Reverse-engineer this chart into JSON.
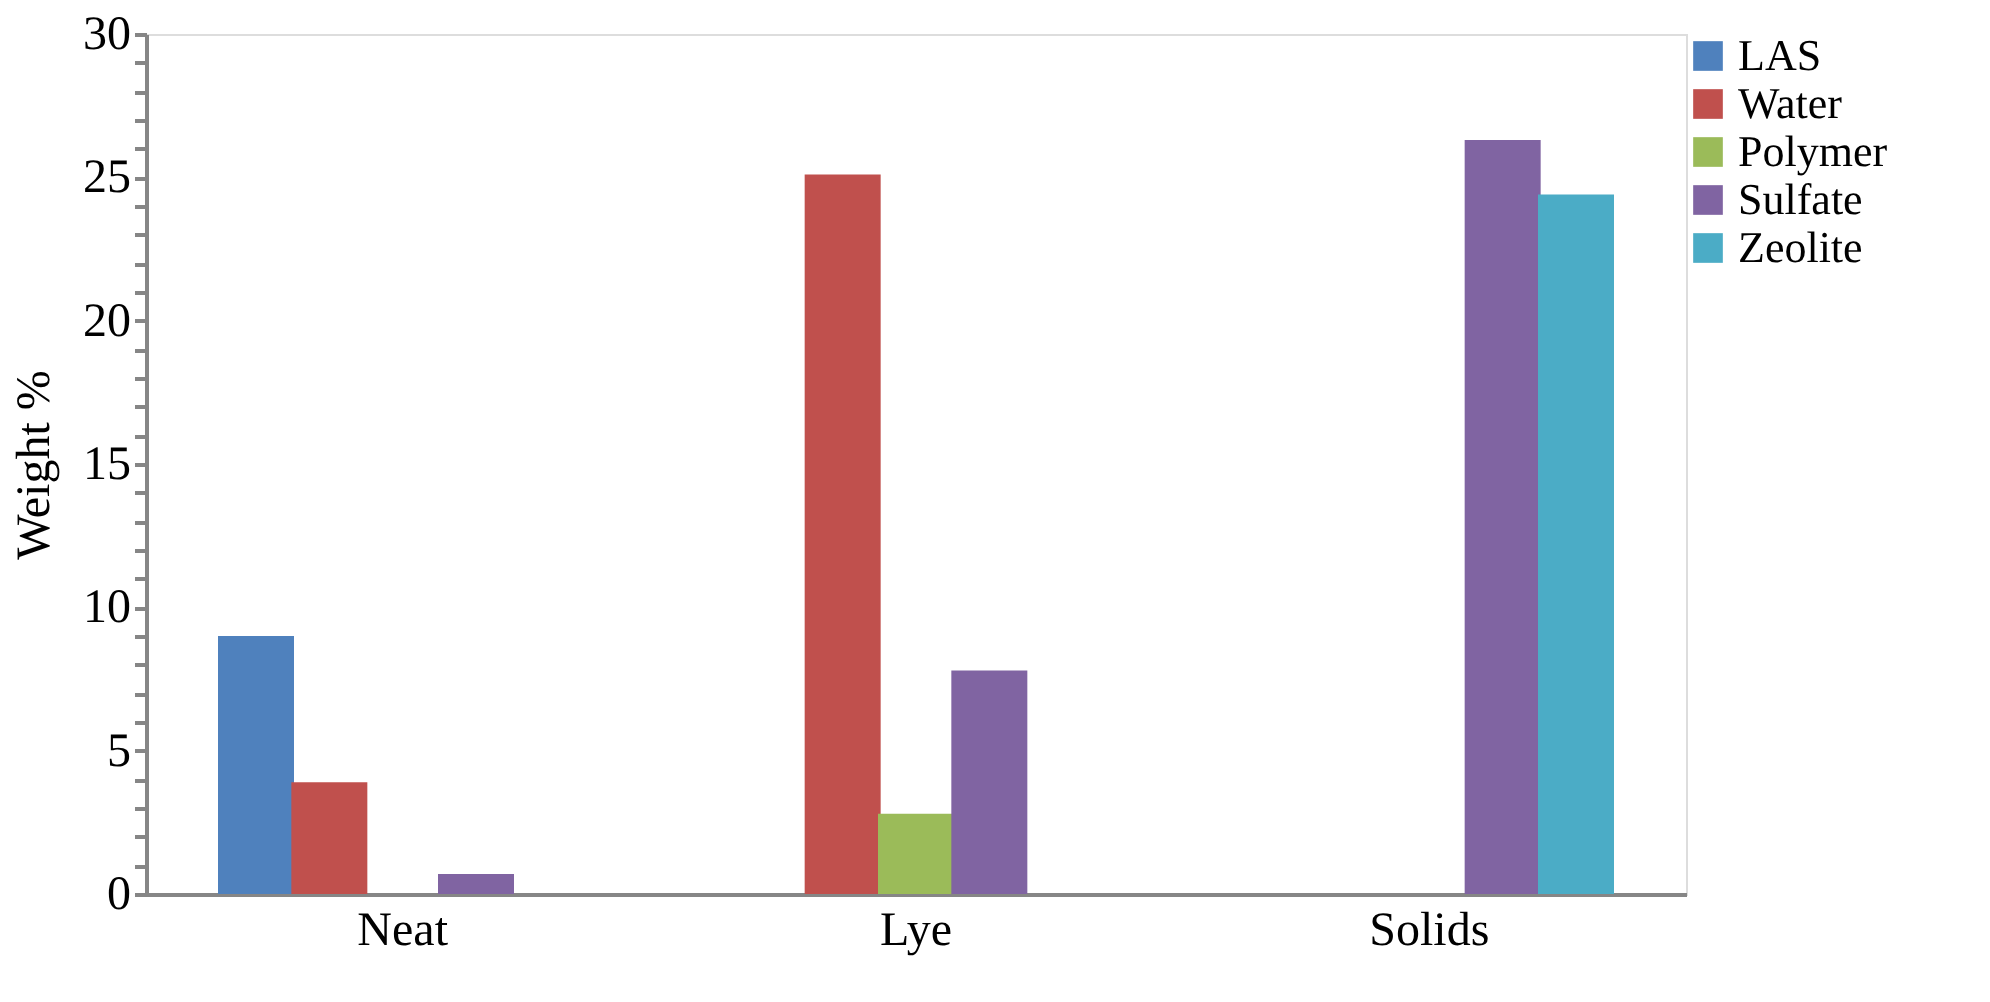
{
  "chart_data": {
    "type": "bar",
    "ylabel": "Weight %",
    "categories": [
      "Neat",
      "Lye",
      "Solids"
    ],
    "series": [
      {
        "name": "LAS",
        "color": "#4f81bd",
        "values": [
          9.0,
          null,
          null
        ]
      },
      {
        "name": "Water",
        "color": "#c0504d",
        "values": [
          3.9,
          25.1,
          null
        ]
      },
      {
        "name": "Polymer",
        "color": "#9bbb59",
        "values": [
          null,
          2.8,
          null
        ]
      },
      {
        "name": "Sulfate",
        "color": "#8064a2",
        "values": [
          0.7,
          7.8,
          26.3
        ]
      },
      {
        "name": "Zeolite",
        "color": "#4bacc6",
        "values": [
          null,
          null,
          24.4
        ]
      }
    ],
    "ylim": [
      0,
      30
    ],
    "yticks": [
      0,
      {
        "value": 1,
        "label": null
      },
      {
        "value": 2,
        "label": null
      },
      {
        "value": 3,
        "label": null
      },
      {
        "value": 4,
        "label": null
      },
      5,
      {
        "value": 6,
        "label": null
      },
      {
        "value": 7,
        "label": null
      },
      {
        "value": 8,
        "label": null
      },
      {
        "value": 9,
        "label": null
      },
      10,
      {
        "value": 11,
        "label": null
      },
      {
        "value": 12,
        "label": null
      },
      {
        "value": 13,
        "label": null
      },
      {
        "value": 14,
        "label": null
      },
      15,
      {
        "value": 16,
        "label": null
      },
      {
        "value": 17,
        "label": null
      },
      {
        "value": 18,
        "label": null
      },
      {
        "value": 19,
        "label": null
      },
      20,
      {
        "value": 21,
        "label": null
      },
      {
        "value": 22,
        "label": null
      },
      {
        "value": 23,
        "label": null
      },
      {
        "value": 24,
        "label": null
      },
      25,
      {
        "value": 26,
        "label": null
      },
      {
        "value": 27,
        "label": null
      },
      {
        "value": 28,
        "label": null
      },
      {
        "value": 29,
        "label": null
      },
      30
    ],
    "grid": false,
    "legend": "top right"
  }
}
